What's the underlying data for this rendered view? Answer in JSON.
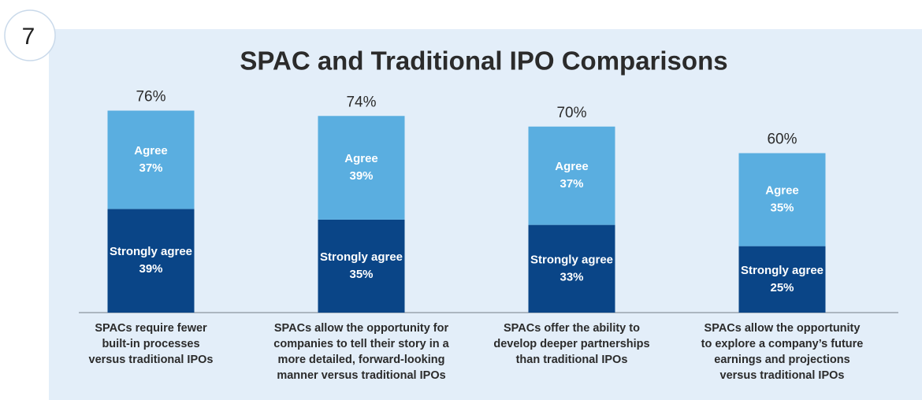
{
  "badge": "7",
  "chart_data": {
    "type": "stacked-bar",
    "title": "SPAC and Traditional IPO Comparisons",
    "categories": [
      "SPACs require fewer\nbuilt-in processes\nversus traditional IPOs",
      "SPACs allow the opportunity for\ncompanies to tell their story in a\nmore detailed, forward-looking\nmanner versus traditional IPOs",
      "SPACs offer the ability to\ndevelop deeper partnerships\nthan traditional IPOs",
      "SPACs allow the opportunity\nto explore a company’s future\nearnings and projections\nversus traditional IPOs"
    ],
    "series": [
      {
        "name": "Strongly agree",
        "color": "#0a4587",
        "values": [
          39,
          35,
          33,
          25
        ],
        "value_labels": [
          "39%",
          "35%",
          "33%",
          "25%"
        ]
      },
      {
        "name": "Agree",
        "color": "#5aaee0",
        "values": [
          37,
          39,
          37,
          35
        ],
        "value_labels": [
          "37%",
          "39%",
          "37%",
          "35%"
        ]
      }
    ],
    "totals": [
      76,
      74,
      70,
      60
    ],
    "total_labels": [
      "76%",
      "74%",
      "70%",
      "60%"
    ],
    "ylim": [
      0,
      80
    ]
  }
}
